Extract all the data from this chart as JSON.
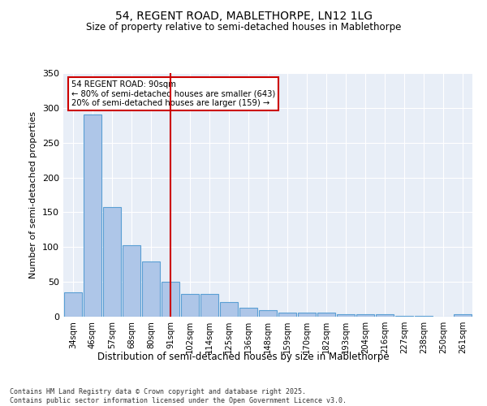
{
  "title1": "54, REGENT ROAD, MABLETHORPE, LN12 1LG",
  "title2": "Size of property relative to semi-detached houses in Mablethorpe",
  "xlabel": "Distribution of semi-detached houses by size in Mablethorpe",
  "ylabel": "Number of semi-detached properties",
  "categories": [
    "34sqm",
    "46sqm",
    "57sqm",
    "68sqm",
    "80sqm",
    "91sqm",
    "102sqm",
    "114sqm",
    "125sqm",
    "136sqm",
    "148sqm",
    "159sqm",
    "170sqm",
    "182sqm",
    "193sqm",
    "204sqm",
    "216sqm",
    "227sqm",
    "238sqm",
    "250sqm",
    "261sqm"
  ],
  "values": [
    35,
    290,
    158,
    103,
    79,
    50,
    33,
    33,
    21,
    13,
    9,
    6,
    6,
    6,
    4,
    4,
    3,
    1,
    1,
    0,
    3
  ],
  "bar_color": "#aec6e8",
  "bar_edge_color": "#5a9fd4",
  "vline_x_index": 5,
  "vline_color": "#cc0000",
  "annotation_title": "54 REGENT ROAD: 90sqm",
  "annotation_line1": "← 80% of semi-detached houses are smaller (643)",
  "annotation_line2": "20% of semi-detached houses are larger (159) →",
  "annotation_box_color": "#cc0000",
  "ylim": [
    0,
    350
  ],
  "yticks": [
    0,
    50,
    100,
    150,
    200,
    250,
    300,
    350
  ],
  "background_color": "#e8eef7",
  "footer1": "Contains HM Land Registry data © Crown copyright and database right 2025.",
  "footer2": "Contains public sector information licensed under the Open Government Licence v3.0."
}
